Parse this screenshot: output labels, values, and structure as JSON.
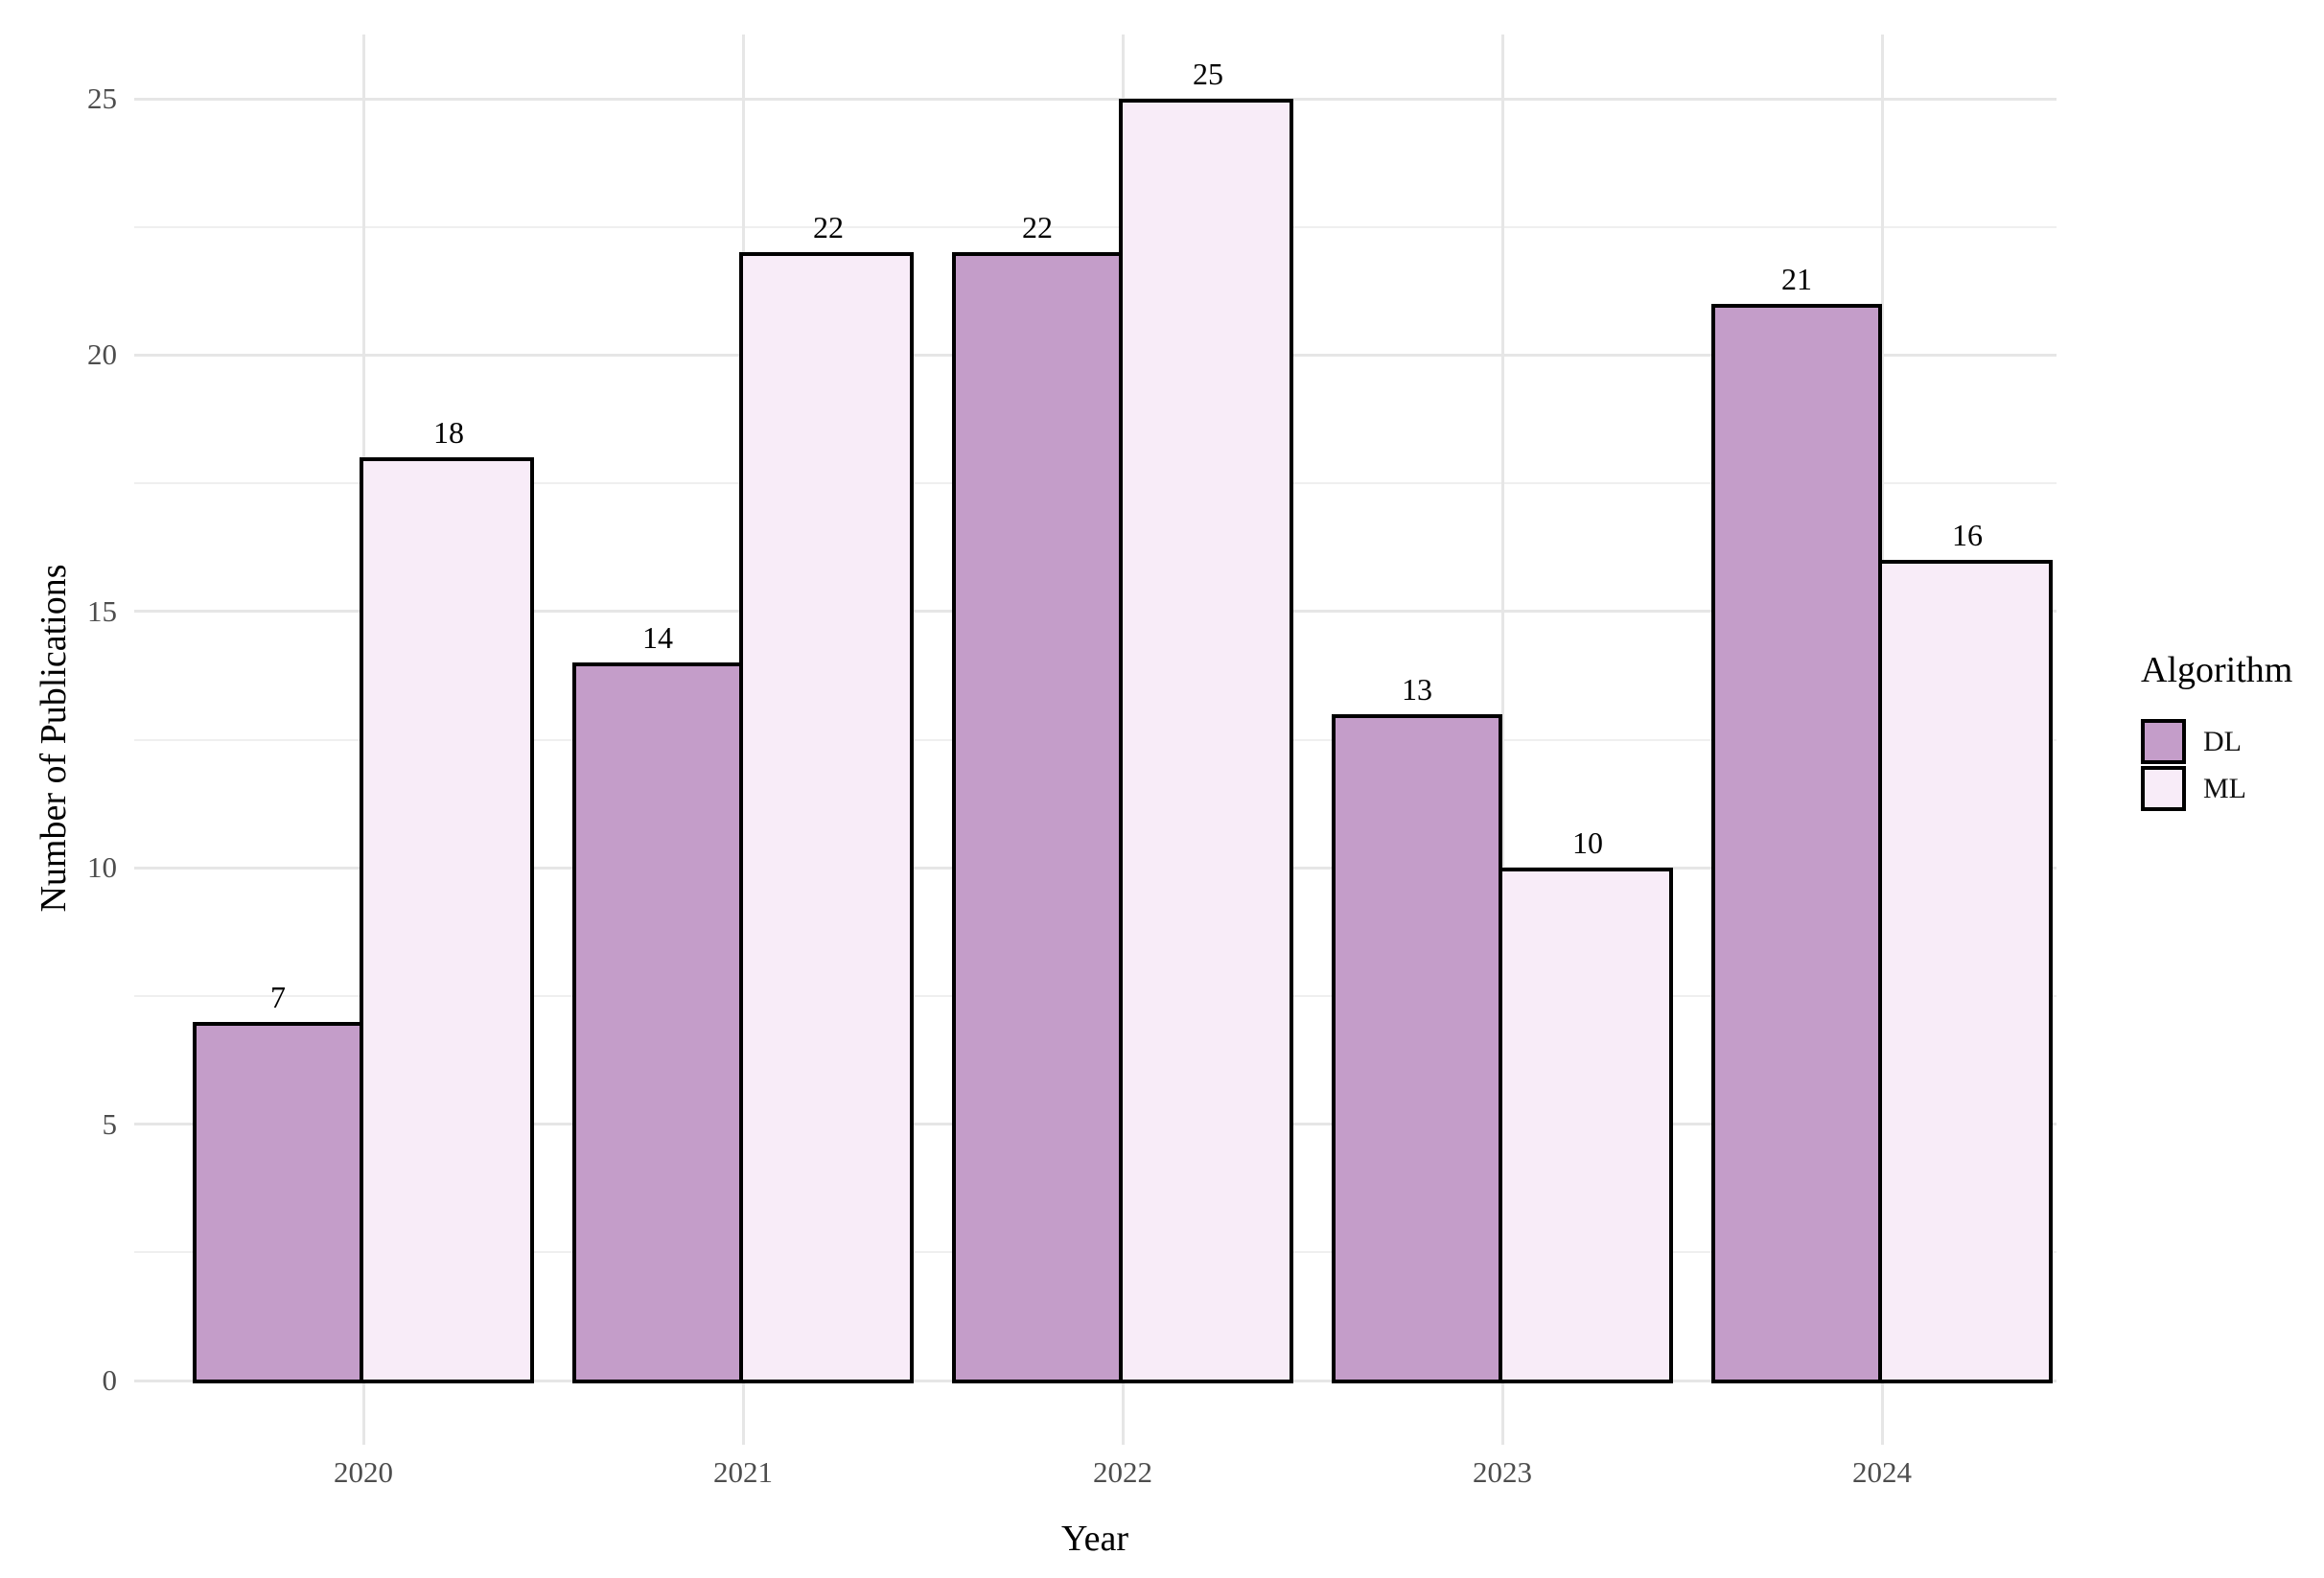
{
  "chart_data": {
    "type": "bar",
    "title": "",
    "xlabel": "Year",
    "ylabel": "Number of Publications",
    "categories": [
      "2020",
      "2021",
      "2022",
      "2023",
      "2024"
    ],
    "series": [
      {
        "name": "DL",
        "color": "#c49dc9",
        "values": [
          7,
          14,
          22,
          13,
          21
        ]
      },
      {
        "name": "ML",
        "color": "#f8ecf8",
        "values": [
          18,
          22,
          25,
          10,
          16
        ]
      }
    ],
    "value_labels": [
      {
        "category": "2020",
        "DL": 7,
        "ML": 18
      },
      {
        "category": "2021",
        "DL": 14,
        "ML": 22
      },
      {
        "category": "2022",
        "DL": 22,
        "ML": 25
      },
      {
        "category": "2023",
        "DL": 13,
        "ML": 10
      },
      {
        "category": "2024",
        "DL": 21,
        "ML": 16
      }
    ],
    "bar_border_color": "#000000",
    "ylim": [
      0,
      25
    ],
    "y_major_ticks": [
      0,
      5,
      10,
      15,
      20,
      25
    ],
    "y_minor_ticks": [
      2.5,
      7.5,
      12.5,
      17.5,
      22.5
    ],
    "grid": true,
    "legend": {
      "title": "Algorithm",
      "position": "right",
      "entries": [
        "DL",
        "ML"
      ]
    }
  },
  "colors": {
    "background": "#ffffff",
    "grid_major": "#e6e6e6",
    "grid_minor": "#efefef",
    "tick_text": "#4d4d4d",
    "title_text": "#000000"
  }
}
